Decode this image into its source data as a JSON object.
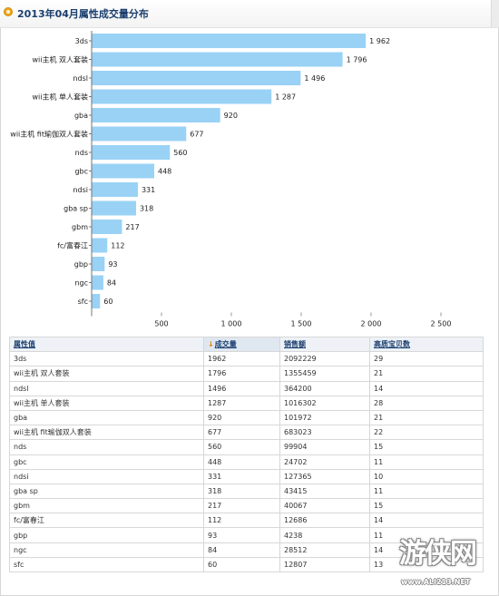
{
  "header": {
    "title": "2013年04月属性成交量分布"
  },
  "chart_data": {
    "type": "bar",
    "orientation": "horizontal",
    "title": "2013年04月属性成交量分布",
    "categories": [
      "3ds",
      "wii主机 双人套装",
      "ndsl",
      "wii主机 单人套装",
      "gba",
      "wii主机 fit瑜伽双人套装",
      "nds",
      "gbc",
      "ndsi",
      "gba sp",
      "gbm",
      "fc/富春江",
      "gbp",
      "ngc",
      "sfc"
    ],
    "values": [
      1962,
      1796,
      1496,
      1287,
      920,
      677,
      560,
      448,
      331,
      318,
      217,
      112,
      93,
      84,
      60
    ],
    "value_labels": [
      "1 962",
      "1 796",
      "1 496",
      "1 287",
      "920",
      "677",
      "560",
      "448",
      "331",
      "318",
      "217",
      "112",
      "93",
      "84",
      "60"
    ],
    "xlim": [
      0,
      2500
    ],
    "xticks": [
      500,
      1000,
      1500,
      2000,
      2500
    ],
    "xtick_labels": [
      "500",
      "1 000",
      "1 500",
      "2 000",
      "2 500"
    ],
    "grid": false,
    "bar_color": "#99d2f5"
  },
  "table": {
    "headers": [
      "属性值",
      "成交量",
      "销售额",
      "高质宝贝数"
    ],
    "sort_indicator": "↓",
    "rows": [
      [
        "3ds",
        "1962",
        "2092229",
        "29"
      ],
      [
        "wii主机 双人套装",
        "1796",
        "1355459",
        "21"
      ],
      [
        "ndsl",
        "1496",
        "364200",
        "14"
      ],
      [
        "wii主机 单人套装",
        "1287",
        "1016302",
        "28"
      ],
      [
        "gba",
        "920",
        "101972",
        "21"
      ],
      [
        "wii主机 fit瑜伽双人套装",
        "677",
        "683023",
        "22"
      ],
      [
        "nds",
        "560",
        "99904",
        "15"
      ],
      [
        "gbc",
        "448",
        "24702",
        "11"
      ],
      [
        "ndsi",
        "331",
        "127365",
        "10"
      ],
      [
        "gba sp",
        "318",
        "43415",
        "11"
      ],
      [
        "gbm",
        "217",
        "40067",
        "15"
      ],
      [
        "fc/富春江",
        "112",
        "12686",
        "14"
      ],
      [
        "gbp",
        "93",
        "4238",
        "11"
      ],
      [
        "ngc",
        "84",
        "28512",
        "14"
      ],
      [
        "sfc",
        "60",
        "12807",
        "13"
      ]
    ]
  },
  "watermark": {
    "text": "游侠网",
    "url": "www.ALI213.NET"
  }
}
